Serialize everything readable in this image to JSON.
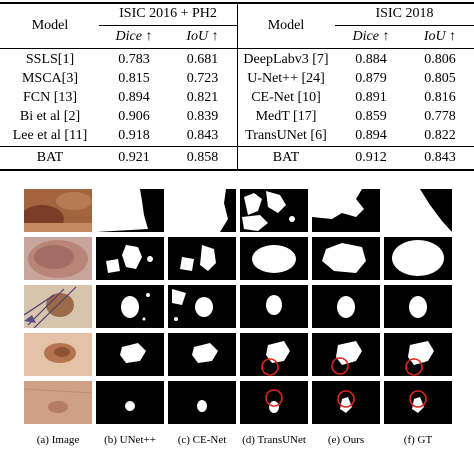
{
  "table": {
    "headers": {
      "model_left": "Model",
      "group_left": "ISIC 2016 + PH2",
      "model_right": "Model",
      "group_right": "ISIC 2018",
      "metric_dice": "Dice ↑",
      "metric_iou": "IoU ↑"
    },
    "left_rows": [
      {
        "model": "SSLS[1]",
        "dice": "0.783",
        "iou": "0.681"
      },
      {
        "model": "MSCA[3]",
        "dice": "0.815",
        "iou": "0.723"
      },
      {
        "model": "FCN [13]",
        "dice": "0.894",
        "iou": "0.821"
      },
      {
        "model": "Bi et al [2]",
        "dice": "0.906",
        "iou": "0.839"
      },
      {
        "model": "Lee et al [11]",
        "dice": "0.918",
        "iou": "0.843"
      }
    ],
    "right_rows": [
      {
        "model": "DeepLabv3 [7]",
        "dice": "0.884",
        "iou": "0.806"
      },
      {
        "model": "U-Net++ [24]",
        "dice": "0.879",
        "iou": "0.805"
      },
      {
        "model": "CE-Net [10]",
        "dice": "0.891",
        "iou": "0.816"
      },
      {
        "model": "MedT [17]",
        "dice": "0.859",
        "iou": "0.778"
      },
      {
        "model": "TransUNet [6]",
        "dice": "0.894",
        "iou": "0.822"
      }
    ],
    "bat_left": {
      "model": "BAT",
      "dice": "0.921",
      "iou": "0.858"
    },
    "bat_right": {
      "model": "BAT",
      "dice": "0.912",
      "iou": "0.843"
    }
  },
  "figure": {
    "captions": [
      "(a) Image",
      "(b) UNet++",
      "(c) CE-Net",
      "(d) TransUNet",
      "(e) Ours",
      "(f) GT"
    ]
  }
}
